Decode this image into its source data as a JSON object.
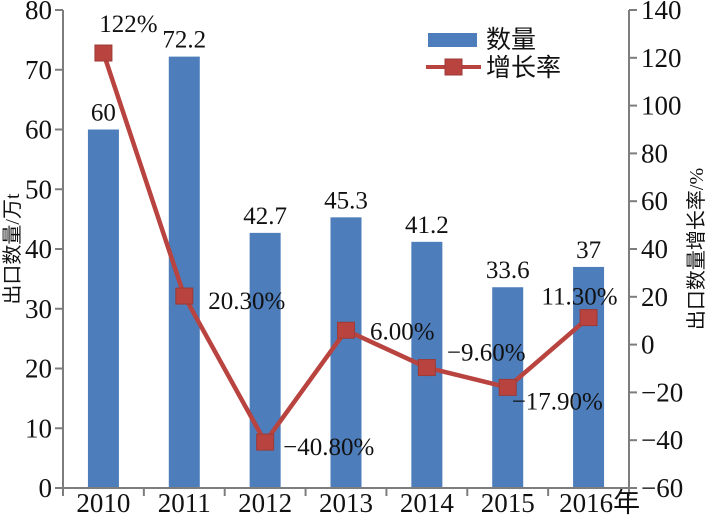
{
  "page": {
    "background": "#ffffff"
  },
  "chart_data": {
    "type": "bar+line",
    "categories": [
      "2010",
      "2011",
      "2012",
      "2013",
      "2014",
      "2015",
      "2016年"
    ],
    "series": [
      {
        "name": "数量",
        "type": "bar",
        "axis": "left",
        "color": "#4d7dbb",
        "values": [
          60,
          72.2,
          42.7,
          45.3,
          41.2,
          33.6,
          37
        ],
        "labels": [
          "60",
          "72.2",
          "42.7",
          "45.3",
          "41.2",
          "33.6",
          "37"
        ]
      },
      {
        "name": "增长率",
        "type": "line",
        "axis": "right",
        "color": "#b8433f",
        "values": [
          122,
          20.3,
          -40.8,
          6,
          -9.6,
          -17.9,
          11.3
        ],
        "labels": [
          "122%",
          "20.30%",
          "−40.80%",
          "6.00%",
          "−9.60%",
          "−17.90%",
          "11.30%"
        ]
      }
    ],
    "left_axis": {
      "label": "出口数量/万t",
      "min": 0,
      "max": 80,
      "step": 10
    },
    "right_axis": {
      "label": "出口数量增长率/%",
      "min": -60,
      "max": 140,
      "step": 20
    },
    "legend": {
      "position": "top-right"
    },
    "grid": false,
    "axis_color": "#7d7d7d",
    "text_color": "#111111"
  }
}
